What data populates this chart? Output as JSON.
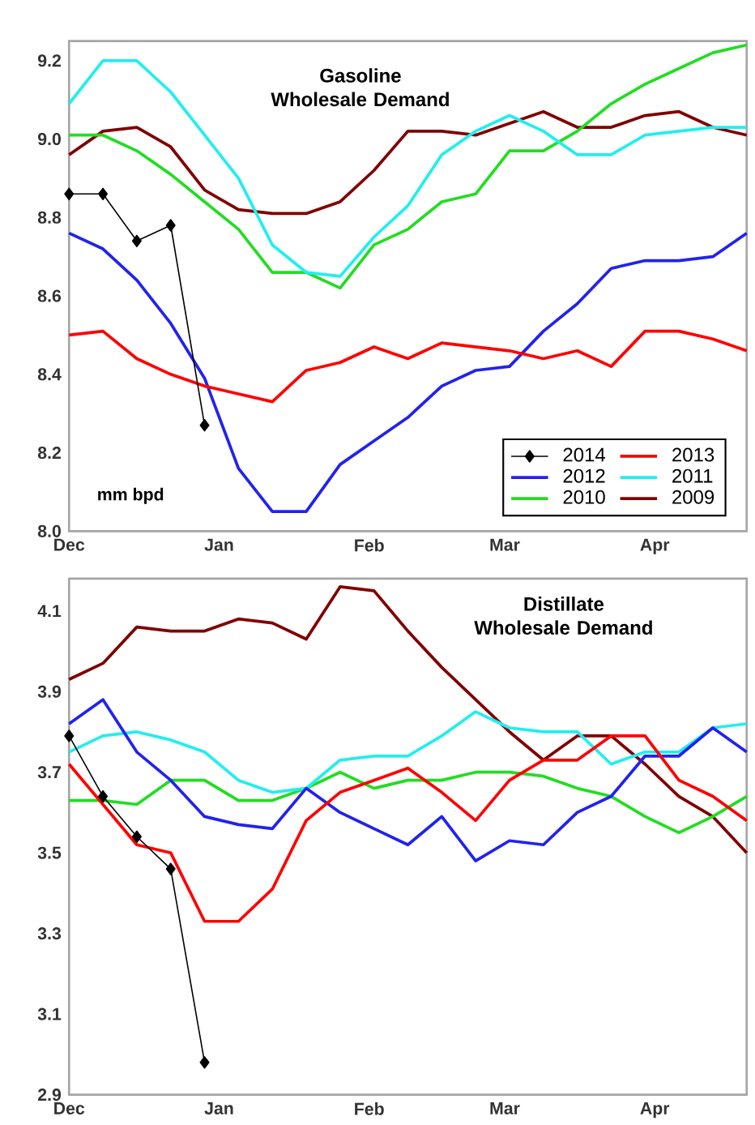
{
  "chart_data": [
    {
      "type": "line",
      "title": "Gasoline Wholesale Demand",
      "annotations": [
        "mm bpd"
      ],
      "legend": "bottom right",
      "x": [
        "2013-12-01",
        "2013-12-08",
        "2013-12-15",
        "2013-12-22",
        "2013-12-29",
        "2014-01-05",
        "2014-01-12",
        "2014-01-19",
        "2014-01-26",
        "2014-02-02",
        "2014-02-09",
        "2014-02-16",
        "2014-02-23",
        "2014-03-02",
        "2014-03-09",
        "2014-03-16",
        "2014-03-23",
        "2014-03-30",
        "2014-04-06",
        "2014-04-13",
        "2014-04-20"
      ],
      "xlim": [
        "2013-12-01",
        "2014-04-20"
      ],
      "xticks": [
        {
          "value": "2013-12-01",
          "label": "Dec"
        },
        {
          "value": "2014-01-01",
          "label": "Jan"
        },
        {
          "value": "2014-02-01",
          "label": "Feb"
        },
        {
          "value": "2014-03-01",
          "label": "Mar"
        },
        {
          "value": "2014-04-01",
          "label": "Apr"
        }
      ],
      "ylim": [
        8.0,
        9.25
      ],
      "yticks": [
        {
          "value": 8,
          "label": "8.0"
        },
        {
          "value": 8.2,
          "label": "8.2"
        },
        {
          "value": 8.4,
          "label": "8.4"
        },
        {
          "value": 8.6,
          "label": "8.6"
        },
        {
          "value": 8.8,
          "label": "8.8"
        },
        {
          "value": 9,
          "label": "9.0"
        },
        {
          "value": 9.2,
          "label": "9.2"
        }
      ],
      "series": [
        {
          "name": "2014",
          "color": "#000000",
          "marker": "diamond",
          "x": [
            "2013-12-01",
            "2013-12-08",
            "2013-12-15",
            "2013-12-22",
            "2013-12-29"
          ],
          "values": [
            8.86,
            8.86,
            8.74,
            8.78,
            8.27
          ]
        },
        {
          "name": "2013",
          "color": "#ff0000",
          "values": [
            8.5,
            8.51,
            8.44,
            8.4,
            8.37,
            8.35,
            8.33,
            8.41,
            8.43,
            8.47,
            8.44,
            8.48,
            8.47,
            8.46,
            8.44,
            8.46,
            8.42,
            8.51,
            8.51,
            8.49,
            8.46
          ]
        },
        {
          "name": "2012",
          "color": "#2222ee",
          "values": [
            8.76,
            8.72,
            8.64,
            8.53,
            8.39,
            8.16,
            8.05,
            8.05,
            8.17,
            8.23,
            8.29,
            8.37,
            8.41,
            8.42,
            8.51,
            8.58,
            8.67,
            8.69,
            8.69,
            8.7,
            8.76
          ]
        },
        {
          "name": "2011",
          "color": "#22eeee",
          "values": [
            9.09,
            9.2,
            9.2,
            9.12,
            9.01,
            8.9,
            8.73,
            8.66,
            8.65,
            8.75,
            8.83,
            8.96,
            9.02,
            9.06,
            9.02,
            8.96,
            8.96,
            9.01,
            9.02,
            9.03,
            9.03
          ]
        },
        {
          "name": "2010",
          "color": "#22dd22",
          "values": [
            9.01,
            9.01,
            8.97,
            8.91,
            8.84,
            8.77,
            8.66,
            8.66,
            8.62,
            8.73,
            8.77,
            8.84,
            8.86,
            8.97,
            8.97,
            9.02,
            9.09,
            9.14,
            9.18,
            9.22,
            9.24
          ]
        },
        {
          "name": "2009",
          "color": "#800000",
          "values": [
            8.96,
            9.02,
            9.03,
            8.98,
            8.87,
            8.82,
            8.81,
            8.81,
            8.84,
            8.92,
            9.02,
            9.02,
            9.01,
            9.04,
            9.07,
            9.03,
            9.03,
            9.06,
            9.07,
            9.03,
            9.01
          ]
        }
      ]
    },
    {
      "type": "line",
      "title": "Distillate Wholesale Demand",
      "x": [
        "2013-12-01",
        "2013-12-08",
        "2013-12-15",
        "2013-12-22",
        "2013-12-29",
        "2014-01-05",
        "2014-01-12",
        "2014-01-19",
        "2014-01-26",
        "2014-02-02",
        "2014-02-09",
        "2014-02-16",
        "2014-02-23",
        "2014-03-02",
        "2014-03-09",
        "2014-03-16",
        "2014-03-23",
        "2014-03-30",
        "2014-04-06",
        "2014-04-13",
        "2014-04-20"
      ],
      "xlim": [
        "2013-12-01",
        "2014-04-20"
      ],
      "xticks": [
        {
          "value": "2013-12-01",
          "label": "Dec"
        },
        {
          "value": "2014-01-01",
          "label": "Jan"
        },
        {
          "value": "2014-02-01",
          "label": "Feb"
        },
        {
          "value": "2014-03-01",
          "label": "Mar"
        },
        {
          "value": "2014-04-01",
          "label": "Apr"
        }
      ],
      "ylim": [
        2.9,
        4.18
      ],
      "yticks": [
        {
          "value": 2.9,
          "label": "2.9"
        },
        {
          "value": 3.1,
          "label": "3.1"
        },
        {
          "value": 3.3,
          "label": "3.3"
        },
        {
          "value": 3.5,
          "label": "3.5"
        },
        {
          "value": 3.7,
          "label": "3.7"
        },
        {
          "value": 3.9,
          "label": "3.9"
        },
        {
          "value": 4.1,
          "label": "4.1"
        }
      ],
      "series": [
        {
          "color": "#000000",
          "marker": "diamond",
          "x": [
            "2013-12-01",
            "2013-12-08",
            "2013-12-15",
            "2013-12-22",
            "2013-12-29"
          ],
          "values": [
            3.79,
            3.64,
            3.54,
            3.46,
            2.98
          ]
        },
        {
          "color": "#ff0000",
          "values": [
            3.72,
            3.62,
            3.52,
            3.5,
            3.33,
            3.33,
            3.41,
            3.58,
            3.65,
            3.68,
            3.71,
            3.65,
            3.58,
            3.68,
            3.73,
            3.73,
            3.79,
            3.79,
            3.68,
            3.64,
            3.58
          ]
        },
        {
          "color": "#2222ee",
          "values": [
            3.82,
            3.88,
            3.75,
            3.68,
            3.59,
            3.57,
            3.56,
            3.66,
            3.6,
            3.56,
            3.52,
            3.59,
            3.48,
            3.53,
            3.52,
            3.6,
            3.64,
            3.74,
            3.74,
            3.81,
            3.75
          ]
        },
        {
          "color": "#22eeee",
          "values": [
            3.75,
            3.79,
            3.8,
            3.78,
            3.75,
            3.68,
            3.65,
            3.66,
            3.73,
            3.74,
            3.74,
            3.79,
            3.85,
            3.81,
            3.8,
            3.8,
            3.72,
            3.75,
            3.75,
            3.81,
            3.82
          ]
        },
        {
          "color": "#22dd22",
          "values": [
            3.63,
            3.63,
            3.62,
            3.68,
            3.68,
            3.63,
            3.63,
            3.66,
            3.7,
            3.66,
            3.68,
            3.68,
            3.7,
            3.7,
            3.69,
            3.66,
            3.64,
            3.59,
            3.55,
            3.59,
            3.64
          ]
        },
        {
          "color": "#800000",
          "values": [
            3.93,
            3.97,
            4.06,
            4.05,
            4.05,
            4.08,
            4.07,
            4.03,
            4.16,
            4.15,
            4.05,
            3.96,
            3.88,
            3.8,
            3.73,
            3.79,
            3.79,
            3.72,
            3.64,
            3.59,
            3.5
          ]
        }
      ]
    }
  ]
}
